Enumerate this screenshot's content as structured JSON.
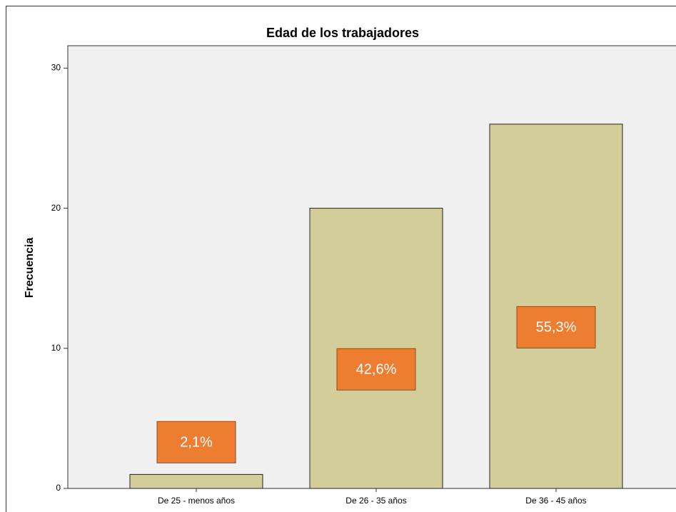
{
  "chart_data": {
    "type": "bar",
    "title": "Edad de los trabajadores",
    "y_label": "Frecuencia",
    "categories": [
      "De 25 - menos años",
      "De 26 - 35 años",
      "De 36 - 45 años"
    ],
    "values": [
      1,
      20,
      26
    ],
    "color": "#d3ce99",
    "percentages": [
      2.1,
      42.6,
      55.3
    ],
    "percentage_labels": [
      "2,1%",
      "42,6%",
      "55,3%"
    ],
    "label_color": "#ed7d31",
    "ylim": [
      0,
      31.6
    ],
    "yticks": [
      0,
      10,
      20,
      30
    ],
    "grid": false
  }
}
